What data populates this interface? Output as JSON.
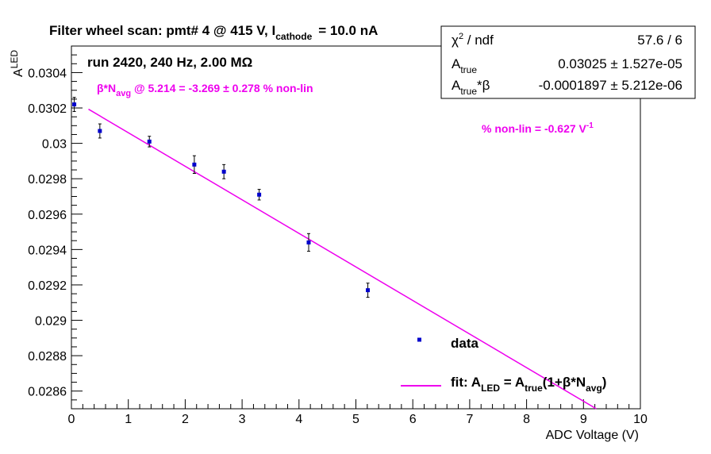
{
  "chart_data": {
    "type": "scatter",
    "title": "Filter wheel scan: pmt#   4 @   415 V, I",
    "title_sub": "cathode",
    "title_tail": "= 10.0 nA",
    "run_label": "run 2420, 240 Hz, 2.00 MΩ",
    "xlabel": "ADC Voltage (V)",
    "ylabel_main": "A",
    "ylabel_sub": "LED",
    "xlim": [
      0,
      10
    ],
    "ylim": [
      0.0285,
      0.03055
    ],
    "x_ticks": [
      "0",
      "1",
      "2",
      "3",
      "4",
      "5",
      "6",
      "7",
      "8",
      "9",
      "10"
    ],
    "y_ticks": [
      "0.0286",
      "0.0288",
      "0.029",
      "0.0292",
      "0.0294",
      "0.0296",
      "0.0298",
      "0.03",
      "0.0302",
      "0.0304"
    ],
    "series": [
      {
        "name": "data",
        "color": "#0000cc",
        "points": [
          {
            "x": 0.05,
            "y": 0.03022,
            "err": 4e-05
          },
          {
            "x": 0.5,
            "y": 0.03007,
            "err": 4e-05
          },
          {
            "x": 1.37,
            "y": 0.03001,
            "err": 3e-05
          },
          {
            "x": 2.16,
            "y": 0.02988,
            "err": 5e-05
          },
          {
            "x": 2.68,
            "y": 0.02984,
            "err": 4e-05
          },
          {
            "x": 3.3,
            "y": 0.02971,
            "err": 3e-05
          },
          {
            "x": 4.17,
            "y": 0.02944,
            "err": 5e-05
          },
          {
            "x": 5.21,
            "y": 0.02917,
            "err": 4e-05
          }
        ]
      }
    ],
    "fit": {
      "color": "#ee00ee",
      "A_true": 0.03025,
      "A_true_beta": -0.0001897,
      "x_range": [
        0.3,
        10
      ]
    },
    "stats": {
      "chi2_label": "χ",
      "chi2_sup": "2",
      "chi2_rest": " / ndf",
      "chi2_value": "57.6 / 6",
      "atrue_label": "A",
      "atrue_sub": "true",
      "atrue_value": "0.03025 ± 1.527e-05",
      "atb_label": "A",
      "atb_sub": "true",
      "atb_rest": "*β",
      "atb_value": "-0.0001897 ± 5.212e-06"
    },
    "annotations": {
      "nonlin_a": "β*N",
      "nonlin_a_sub": "avg",
      "nonlin_b": " @ 5.214 = -3.269 ± 0.278 % non-lin",
      "nonlin2": "% non-lin = -0.627 V",
      "nonlin2_sup": "-1"
    },
    "legend": {
      "data_label": "data",
      "fit_a": "fit: A",
      "fit_a_sub": "LED",
      "fit_b": " = A",
      "fit_b_sub": "true",
      "fit_c": "(1+β*N",
      "fit_c_sub": "avg",
      "fit_d": ")"
    },
    "grid": false
  }
}
